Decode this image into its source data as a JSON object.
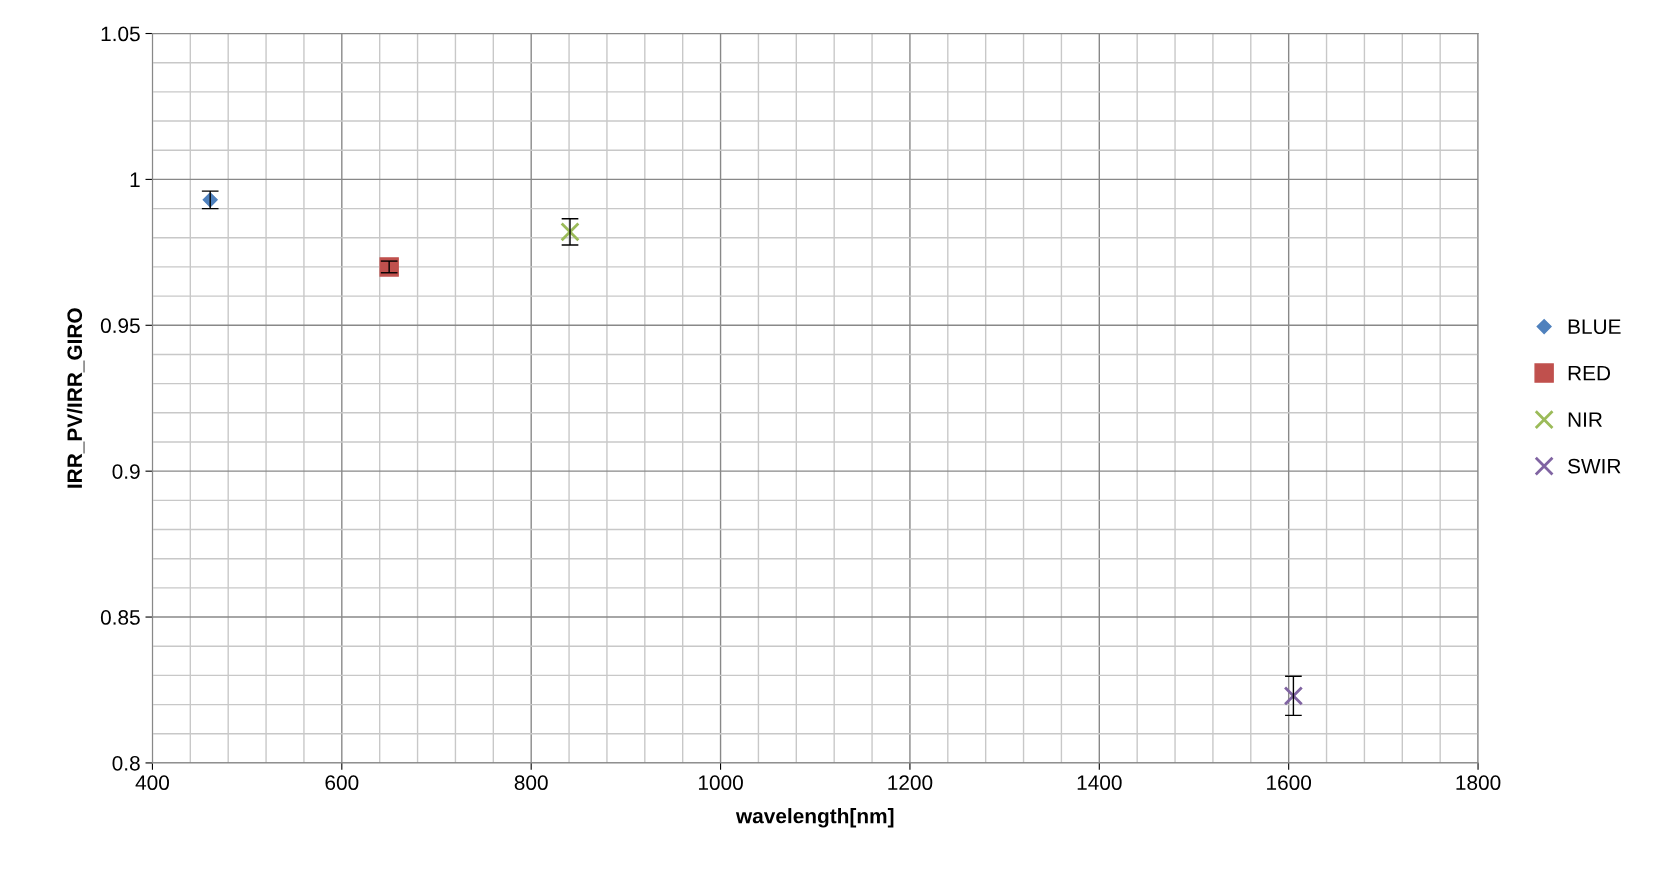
{
  "chart_data": {
    "type": "scatter",
    "xlabel": "wavelength[nm]",
    "ylabel": "IRR_PV/IRR_GIRO",
    "series": [
      {
        "name": "BLUE",
        "color": "#4f81bd",
        "marker": "diamond",
        "x": [
          461
        ],
        "values": [
          0.993
        ],
        "errors": [
          0.003
        ]
      },
      {
        "name": "RED",
        "color": "#c0504d",
        "marker": "square",
        "x": [
          650
        ],
        "values": [
          0.97
        ],
        "errors": [
          0.002
        ]
      },
      {
        "name": "NIR",
        "color": "#9bbb59",
        "marker": "cross",
        "x": [
          841
        ],
        "values": [
          0.982
        ],
        "errors": [
          0.0045
        ]
      },
      {
        "name": "SWIR",
        "color": "#8064a2",
        "marker": "cross",
        "x": [
          1605
        ],
        "values": [
          0.823
        ],
        "errors": [
          0.0067
        ]
      }
    ],
    "xlim": [
      400,
      1800
    ],
    "xticks": [
      400,
      600,
      800,
      1000,
      1200,
      1400,
      1600,
      1800
    ],
    "ylim": [
      0.8,
      1.05
    ],
    "yticks": [
      0.8,
      {
        "value": 0.85,
        "label": "0.85"
      },
      0.9,
      {
        "value": 0.95,
        "label": "0.95"
      },
      1,
      1.05
    ],
    "grid": true,
    "legend": "right"
  }
}
